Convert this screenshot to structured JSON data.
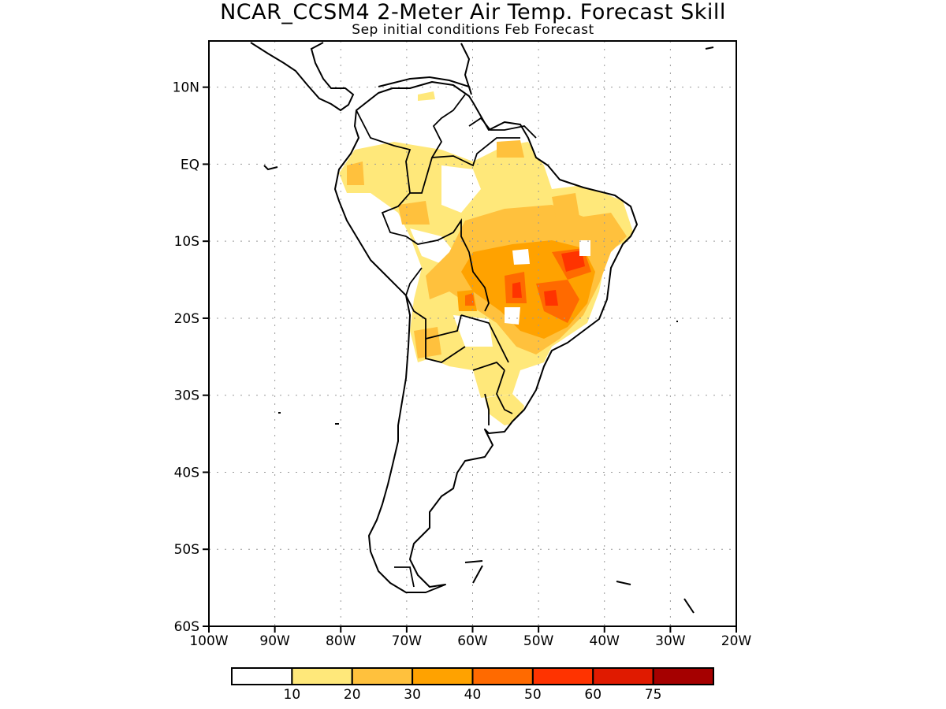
{
  "header": {
    "title": "NCAR_CCSM4 2-Meter Air Temp. Forecast Skill",
    "subtitle": "Sep initial conditions  Feb Forecast"
  },
  "map": {
    "lon_range": [
      -100,
      -20
    ],
    "lat_range": [
      -60,
      16
    ],
    "y_ticks": [
      {
        "lat": 10,
        "label": "10N"
      },
      {
        "lat": 0,
        "label": "EQ"
      },
      {
        "lat": -10,
        "label": "10S"
      },
      {
        "lat": -20,
        "label": "20S"
      },
      {
        "lat": -30,
        "label": "30S"
      },
      {
        "lat": -40,
        "label": "40S"
      },
      {
        "lat": -50,
        "label": "50S"
      },
      {
        "lat": -60,
        "label": "60S"
      }
    ],
    "x_ticks": [
      {
        "lon": -100,
        "label": "100W"
      },
      {
        "lon": -90,
        "label": "90W"
      },
      {
        "lon": -80,
        "label": "80W"
      },
      {
        "lon": -70,
        "label": "70W"
      },
      {
        "lon": -60,
        "label": "60W"
      },
      {
        "lon": -50,
        "label": "50W"
      },
      {
        "lon": -40,
        "label": "40W"
      },
      {
        "lon": -30,
        "label": "30W"
      },
      {
        "lon": -20,
        "label": "20W"
      }
    ],
    "grid": "dotted"
  },
  "colorbar": {
    "colors": [
      "#ffffff",
      "#ffe87a",
      "#ffc13d",
      "#ffa200",
      "#ff6a00",
      "#ff3300",
      "#e01a00",
      "#a50000"
    ],
    "labels": [
      "10",
      "20",
      "30",
      "40",
      "50",
      "60",
      "75"
    ]
  }
}
